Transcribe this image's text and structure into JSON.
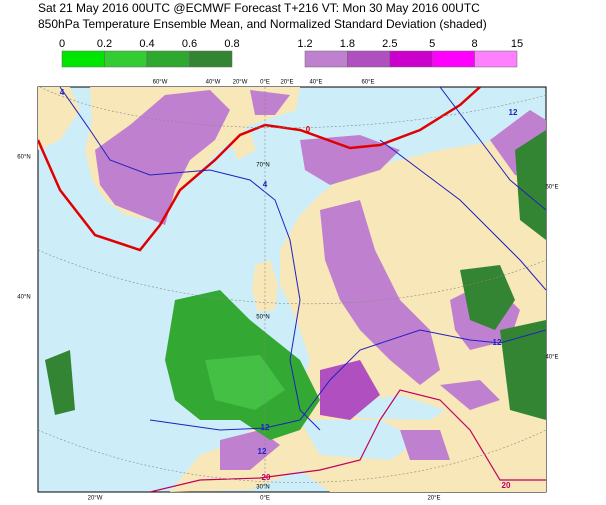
{
  "header": {
    "line1": "Sat 21 May 2016 00UTC @ECMWF Forecast T+216 VT: Mon 30 May 2016 00UTC",
    "line2": "850hPa Temperature Ensemble Mean, and Normalized Standard Deviation (shaded)"
  },
  "legend_green": {
    "labels": [
      "0",
      "0.2",
      "0.4",
      "0.6",
      "0.8"
    ],
    "colors": [
      "#00e600",
      "#33cc33",
      "#2ea82e",
      "#338533"
    ]
  },
  "legend_purple": {
    "labels": [
      "1.2",
      "1.8",
      "2.5",
      "5",
      "8",
      "15"
    ],
    "colors": [
      "#c080d0",
      "#b050c0",
      "#cc00cc",
      "#ff00ff",
      "#ff80ff"
    ]
  },
  "map": {
    "grid_labels": [
      "60°W",
      "40°W",
      "20°W",
      "0°E",
      "20°E",
      "40°E",
      "60°E",
      "60°N",
      "40°N",
      "60°E",
      "40°E",
      "20°W",
      "0°E",
      "20°E",
      "70°N",
      "50°N",
      "30°N"
    ],
    "contour_labels": [
      "0",
      "4",
      "4",
      "12",
      "12",
      "12",
      "12",
      "20",
      "20"
    ]
  }
}
